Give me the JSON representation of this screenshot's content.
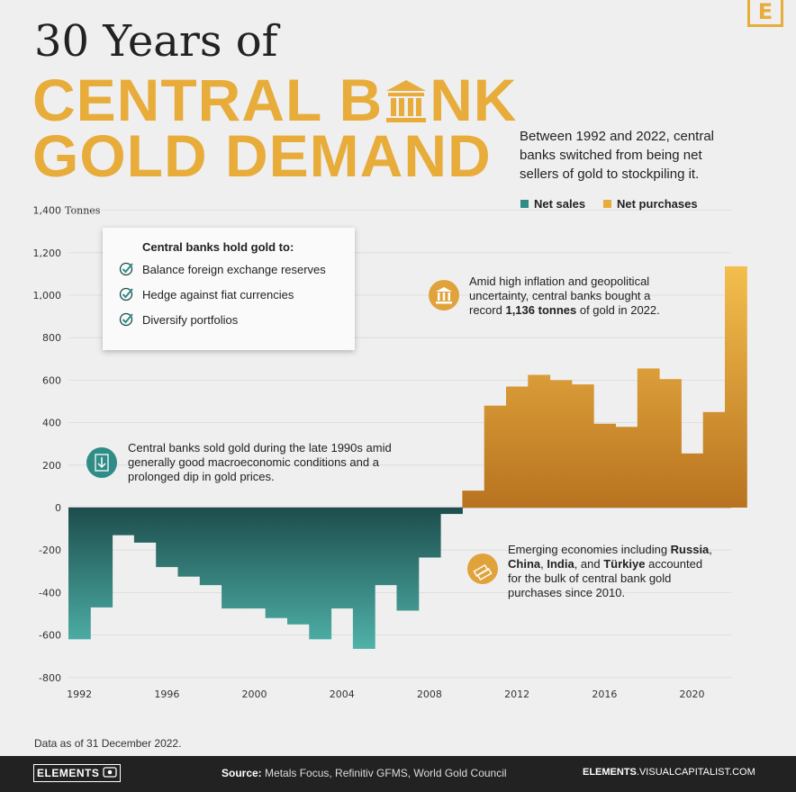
{
  "logo": "E",
  "title": {
    "line_top": "30 Years of",
    "line1_a": "CENTRAL B",
    "line1_b": "NK",
    "line2": "GOLD DEMAND"
  },
  "subtitle": "Between 1992 and 2022, central banks switched from being net sellers of gold to stockpiling it.",
  "legend": {
    "sales": "Net sales",
    "purchases": "Net purchases"
  },
  "colors": {
    "sales_dark": "#1d4c4c",
    "sales_light": "#4fb3aa",
    "purchases_dark": "#b9731f",
    "purchases_light": "#f5c04e",
    "accent": "#e8ac3a"
  },
  "reasons": {
    "title": "Central banks hold gold to:",
    "items": [
      "Balance foreign exchange reserves",
      "Hedge against fiat currencies",
      "Diversify portfolios"
    ]
  },
  "notes": {
    "sold": "Central banks sold gold during the late 1990s amid generally good macroeconomic conditions and a prolonged dip in gold prices.",
    "record_a": "Amid high inflation and geopolitical uncertainty, central banks bought a record ",
    "record_b": "1,136 tonnes",
    "record_c": " of gold in 2022.",
    "emerging_a": "Emerging economies including ",
    "emerging_b1": "Russia",
    "emerging_s1": ", ",
    "emerging_b2": "China",
    "emerging_s2": ", ",
    "emerging_b3": "India",
    "emerging_s3": ", and ",
    "emerging_b4": "Türkiye",
    "emerging_c": " accounted for the bulk of central bank gold purchases since 2010."
  },
  "footnote": "Data as of 31 December 2022.",
  "footer": {
    "brand": "ELEMENTS",
    "source_label": "Source:",
    "source_text": " Metals Focus, Refinitiv GFMS, World Gold Council",
    "url_bold": "ELEMENTS",
    "url_rest": ".VISUALCAPITALIST.COM"
  },
  "chart_data": {
    "type": "bar",
    "y_unit_label": "Tonnes",
    "ylim": [
      -800,
      1400
    ],
    "yticks": [
      -800,
      -600,
      -400,
      -200,
      0,
      200,
      400,
      600,
      800,
      1000,
      1200,
      1400
    ],
    "ytick_labels": [
      "-800",
      "-600",
      "-400",
      "-200",
      "0",
      "200",
      "400",
      "600",
      "800",
      "1,000",
      "1,200",
      "1,400"
    ],
    "xticks": [
      "1992",
      "1996",
      "2000",
      "2004",
      "2008",
      "2012",
      "2016",
      "2020"
    ],
    "grid": true,
    "categories": [
      "1992",
      "1993",
      "1994",
      "1995",
      "1996",
      "1997",
      "1998",
      "1999",
      "2000",
      "2001",
      "2002",
      "2003",
      "2004",
      "2005",
      "2006",
      "2007",
      "2008",
      "2009",
      "2010",
      "2011",
      "2012",
      "2013",
      "2014",
      "2015",
      "2016",
      "2017",
      "2018",
      "2019",
      "2020",
      "2021",
      "2022"
    ],
    "values": [
      -620,
      -470,
      -130,
      -165,
      -280,
      -325,
      -365,
      -475,
      -475,
      -520,
      -550,
      -620,
      -475,
      -665,
      -365,
      -485,
      -235,
      -30,
      80,
      480,
      570,
      625,
      600,
      580,
      395,
      380,
      655,
      605,
      255,
      450,
      1136
    ]
  }
}
